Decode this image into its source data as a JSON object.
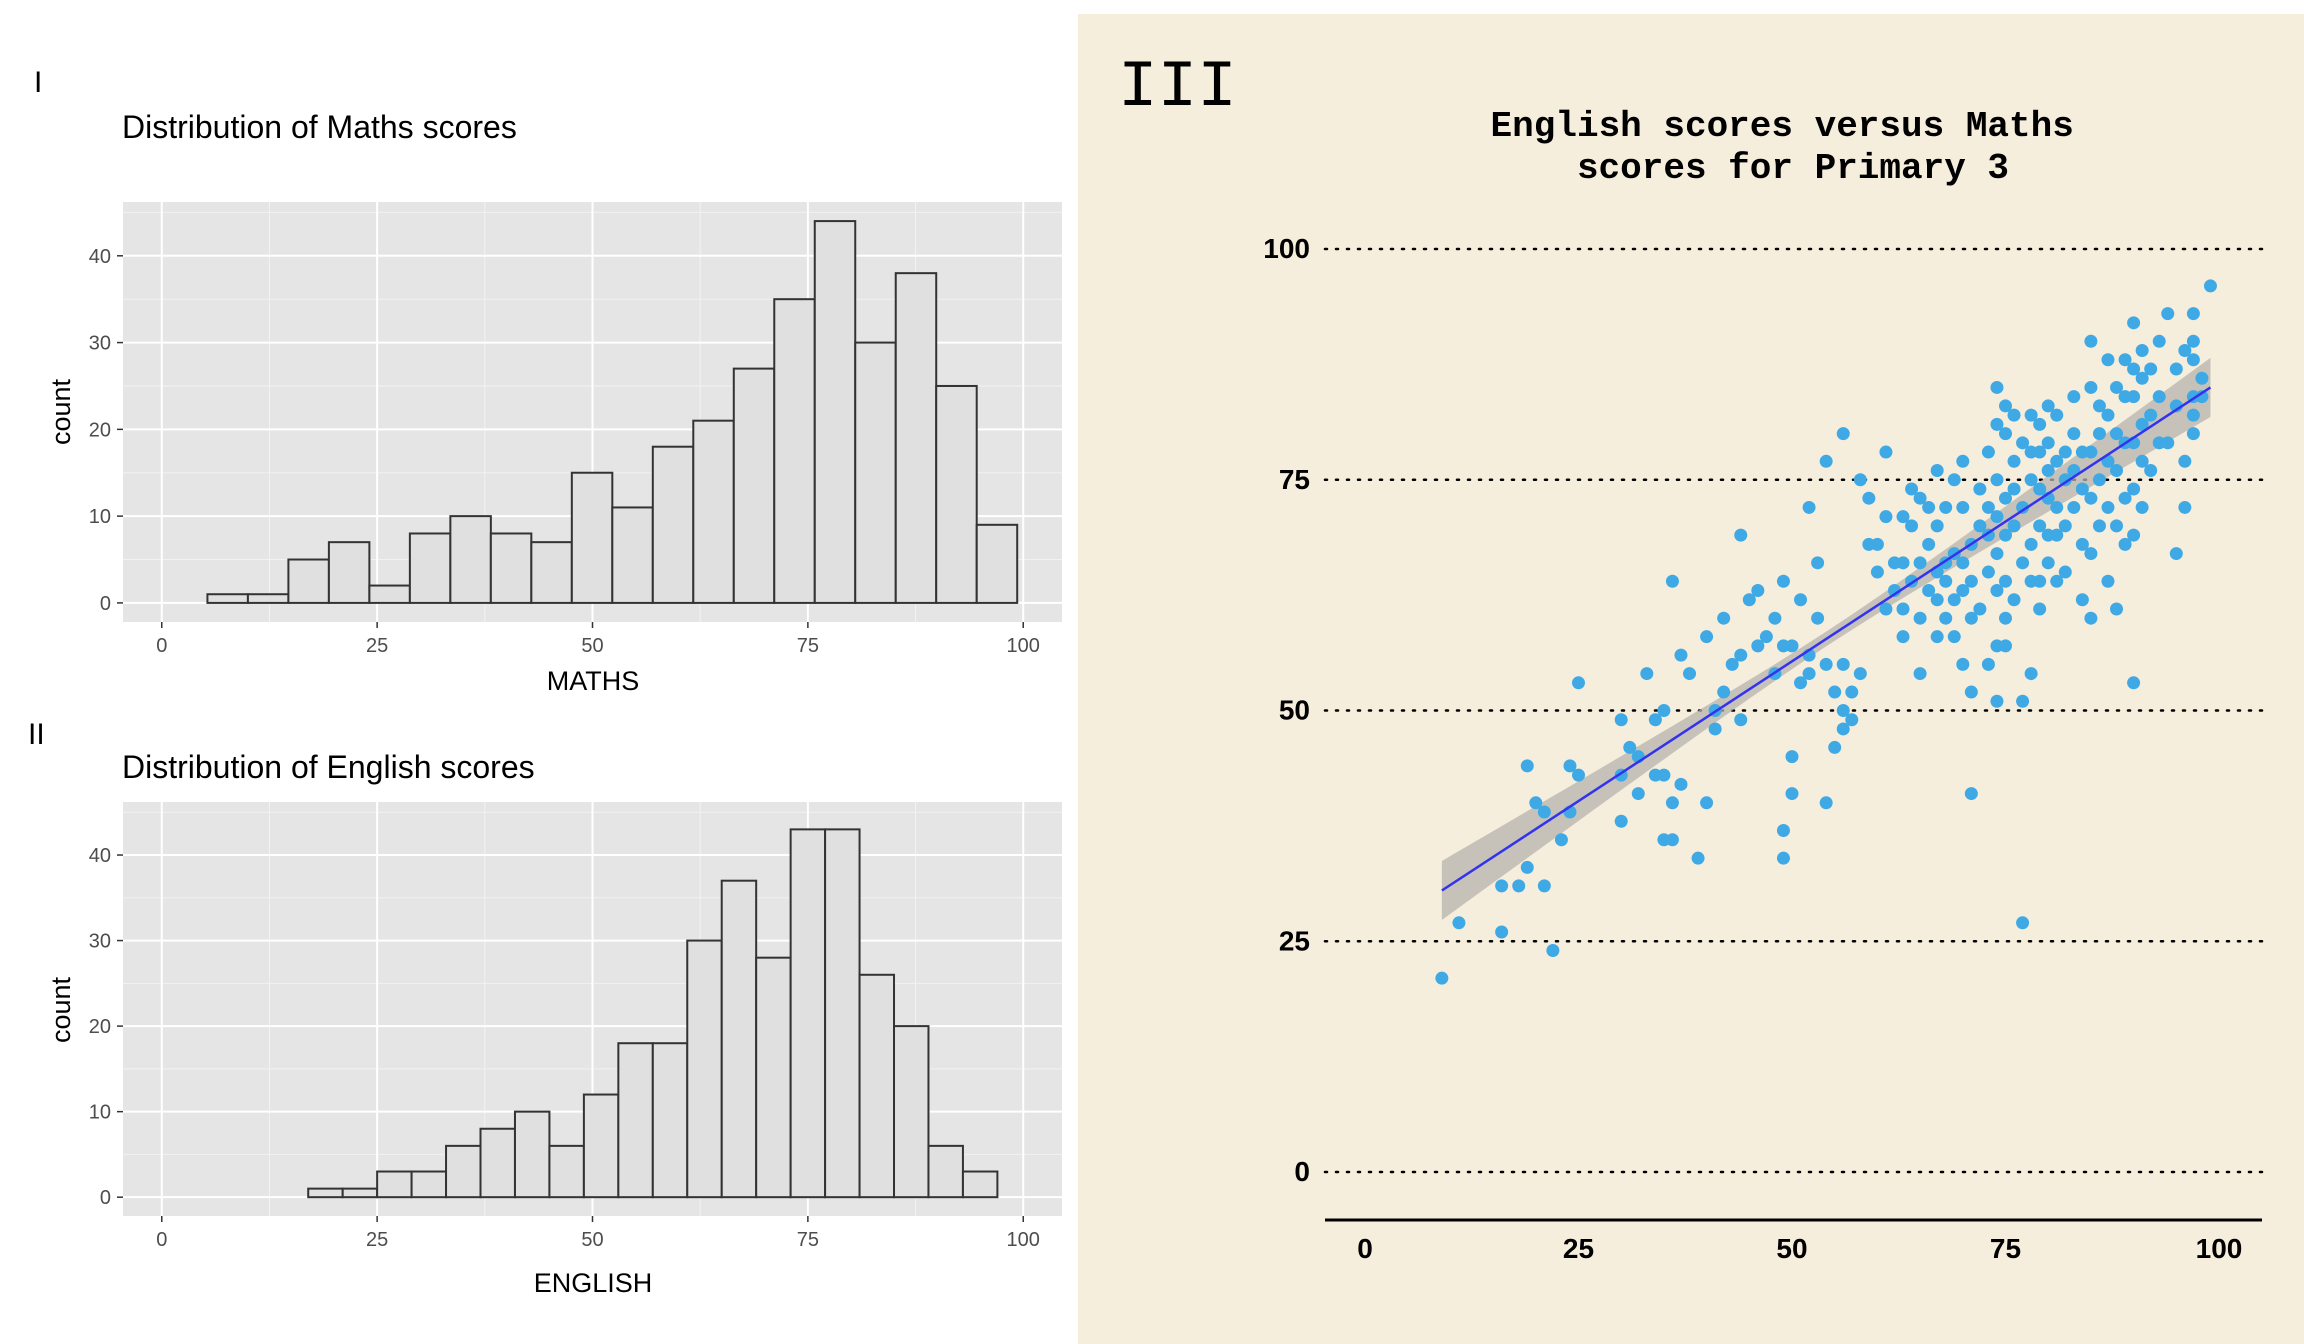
{
  "panels": {
    "p1_tag": "I",
    "p2_tag": "II",
    "p3_tag": "III"
  },
  "chart_data": [
    {
      "type": "bar",
      "title": "Distribution of Maths scores",
      "xlabel": "MATHS",
      "ylabel": "count",
      "xlim": [
        -4.5,
        104.5
      ],
      "ylim": [
        -2.2,
        46.2
      ],
      "x_ticks": [
        0,
        25,
        50,
        75,
        100
      ],
      "y_ticks": [
        0,
        10,
        20,
        30,
        40
      ],
      "bin_width": 4.7,
      "bins": [
        {
          "x0": 5.3,
          "x1": 10.0,
          "count": 1
        },
        {
          "x0": 10.0,
          "x1": 14.7,
          "count": 1
        },
        {
          "x0": 14.7,
          "x1": 19.4,
          "count": 5
        },
        {
          "x0": 19.4,
          "x1": 24.1,
          "count": 7
        },
        {
          "x0": 24.1,
          "x1": 28.8,
          "count": 2
        },
        {
          "x0": 28.8,
          "x1": 33.5,
          "count": 8
        },
        {
          "x0": 33.5,
          "x1": 38.2,
          "count": 10
        },
        {
          "x0": 38.2,
          "x1": 42.9,
          "count": 8
        },
        {
          "x0": 42.9,
          "x1": 47.6,
          "count": 7
        },
        {
          "x0": 47.6,
          "x1": 52.3,
          "count": 15
        },
        {
          "x0": 52.3,
          "x1": 57.0,
          "count": 11
        },
        {
          "x0": 57.0,
          "x1": 61.7,
          "count": 18
        },
        {
          "x0": 61.7,
          "x1": 66.4,
          "count": 21
        },
        {
          "x0": 66.4,
          "x1": 71.1,
          "count": 27
        },
        {
          "x0": 71.1,
          "x1": 75.8,
          "count": 35
        },
        {
          "x0": 75.8,
          "x1": 80.5,
          "count": 44
        },
        {
          "x0": 80.5,
          "x1": 85.2,
          "count": 30
        },
        {
          "x0": 85.2,
          "x1": 89.9,
          "count": 38
        },
        {
          "x0": 89.9,
          "x1": 94.6,
          "count": 25
        },
        {
          "x0": 94.6,
          "x1": 99.3,
          "count": 9
        }
      ],
      "colors": {
        "fill": "#e0e0e0",
        "stroke": "#333333",
        "panel": "#e5e5e5",
        "grid": "#ffffff"
      }
    },
    {
      "type": "bar",
      "title": "Distribution of English scores",
      "xlabel": "ENGLISH",
      "ylabel": "count",
      "xlim": [
        -4.5,
        104.5
      ],
      "ylim": [
        -2.2,
        46.2
      ],
      "x_ticks": [
        0,
        25,
        50,
        75,
        100
      ],
      "y_ticks": [
        0,
        10,
        20,
        30,
        40
      ],
      "bin_width": 4.0,
      "bins": [
        {
          "x0": 17,
          "x1": 21,
          "count": 1
        },
        {
          "x0": 21,
          "x1": 25,
          "count": 1
        },
        {
          "x0": 25,
          "x1": 29,
          "count": 3
        },
        {
          "x0": 29,
          "x1": 33,
          "count": 3
        },
        {
          "x0": 33,
          "x1": 37,
          "count": 6
        },
        {
          "x0": 37,
          "x1": 41,
          "count": 8
        },
        {
          "x0": 41,
          "x1": 45,
          "count": 10
        },
        {
          "x0": 45,
          "x1": 49,
          "count": 6
        },
        {
          "x0": 49,
          "x1": 53,
          "count": 12
        },
        {
          "x0": 53,
          "x1": 57,
          "count": 18
        },
        {
          "x0": 57,
          "x1": 61,
          "count": 18
        },
        {
          "x0": 61,
          "x1": 65,
          "count": 30
        },
        {
          "x0": 65,
          "x1": 69,
          "count": 37
        },
        {
          "x0": 69,
          "x1": 73,
          "count": 28
        },
        {
          "x0": 73,
          "x1": 77,
          "count": 43
        },
        {
          "x0": 77,
          "x1": 81,
          "count": 43
        },
        {
          "x0": 81,
          "x1": 85,
          "count": 26
        },
        {
          "x0": 85,
          "x1": 89,
          "count": 20
        },
        {
          "x0": 89,
          "x1": 93,
          "count": 6
        },
        {
          "x0": 93,
          "x1": 97,
          "count": 3
        }
      ],
      "colors": {
        "fill": "#e0e0e0",
        "stroke": "#333333",
        "panel": "#e5e5e5",
        "grid": "#ffffff"
      }
    },
    {
      "type": "scatter",
      "title": "English scores versus Maths scores for Primary 3",
      "xlabel": "",
      "ylabel": "",
      "xlim": [
        -5,
        105
      ],
      "ylim": [
        -5,
        100
      ],
      "x_ticks": [
        0,
        25,
        50,
        75,
        100
      ],
      "y_ticks": [
        0,
        25,
        50,
        75,
        100
      ],
      "grid": "horizontal-dotted",
      "fit": {
        "method": "linear",
        "x0": 9,
        "y0": 30.5,
        "x1": 99,
        "y1": 85.0,
        "se_halfwidth_ends": 3.2,
        "se_halfwidth_mid": 0.8
      },
      "points": [
        [
          9,
          21
        ],
        [
          11,
          27
        ],
        [
          16,
          26
        ],
        [
          16,
          31
        ],
        [
          18,
          31
        ],
        [
          19,
          33
        ],
        [
          19,
          44
        ],
        [
          20,
          40
        ],
        [
          21,
          31
        ],
        [
          21,
          39
        ],
        [
          22,
          24
        ],
        [
          23,
          36
        ],
        [
          24,
          39
        ],
        [
          24,
          44
        ],
        [
          25,
          43
        ],
        [
          25,
          53
        ],
        [
          30,
          38
        ],
        [
          30,
          43
        ],
        [
          30,
          49
        ],
        [
          31,
          46
        ],
        [
          32,
          41
        ],
        [
          32,
          45
        ],
        [
          33,
          54
        ],
        [
          34,
          43
        ],
        [
          34,
          49
        ],
        [
          35,
          36
        ],
        [
          35,
          43
        ],
        [
          35,
          50
        ],
        [
          36,
          36
        ],
        [
          36,
          40
        ],
        [
          36,
          64
        ],
        [
          37,
          42
        ],
        [
          37,
          56
        ],
        [
          38,
          54
        ],
        [
          39,
          34
        ],
        [
          40,
          40
        ],
        [
          40,
          58
        ],
        [
          41,
          48
        ],
        [
          41,
          50
        ],
        [
          42,
          52
        ],
        [
          42,
          60
        ],
        [
          43,
          55
        ],
        [
          44,
          49
        ],
        [
          44,
          69
        ],
        [
          44,
          56
        ],
        [
          45,
          62
        ],
        [
          46,
          57
        ],
        [
          46,
          63
        ],
        [
          47,
          58
        ],
        [
          48,
          54
        ],
        [
          48,
          60
        ],
        [
          49,
          34
        ],
        [
          49,
          37
        ],
        [
          49,
          57
        ],
        [
          49,
          64
        ],
        [
          50,
          41
        ],
        [
          50,
          45
        ],
        [
          50,
          57
        ],
        [
          51,
          53
        ],
        [
          51,
          62
        ],
        [
          52,
          72
        ],
        [
          52,
          54
        ],
        [
          52,
          56
        ],
        [
          53,
          60
        ],
        [
          53,
          66
        ],
        [
          54,
          40
        ],
        [
          54,
          55
        ],
        [
          54,
          77
        ],
        [
          55,
          46
        ],
        [
          55,
          52
        ],
        [
          56,
          48
        ],
        [
          56,
          50
        ],
        [
          56,
          55
        ],
        [
          56,
          80
        ],
        [
          57,
          49
        ],
        [
          57,
          52
        ],
        [
          58,
          54
        ],
        [
          58,
          75
        ],
        [
          59,
          73
        ],
        [
          59,
          68
        ],
        [
          60,
          65
        ],
        [
          60,
          68
        ],
        [
          61,
          61
        ],
        [
          61,
          71
        ],
        [
          61,
          78
        ],
        [
          62,
          63
        ],
        [
          62,
          66
        ],
        [
          63,
          58
        ],
        [
          63,
          61
        ],
        [
          63,
          66
        ],
        [
          63,
          71
        ],
        [
          64,
          64
        ],
        [
          64,
          70
        ],
        [
          64,
          74
        ],
        [
          65,
          54
        ],
        [
          65,
          60
        ],
        [
          65,
          66
        ],
        [
          65,
          73
        ],
        [
          66,
          63
        ],
        [
          66,
          68
        ],
        [
          66,
          72
        ],
        [
          67,
          58
        ],
        [
          67,
          62
        ],
        [
          67,
          65
        ],
        [
          67,
          70
        ],
        [
          67,
          76
        ],
        [
          68,
          60
        ],
        [
          68,
          64
        ],
        [
          68,
          66
        ],
        [
          68,
          72
        ],
        [
          69,
          58
        ],
        [
          69,
          62
        ],
        [
          69,
          67
        ],
        [
          69,
          75
        ],
        [
          70,
          55
        ],
        [
          70,
          63
        ],
        [
          70,
          66
        ],
        [
          70,
          72
        ],
        [
          70,
          77
        ],
        [
          71,
          41
        ],
        [
          71,
          52
        ],
        [
          71,
          60
        ],
        [
          71,
          64
        ],
        [
          71,
          68
        ],
        [
          72,
          61
        ],
        [
          72,
          70
        ],
        [
          72,
          74
        ],
        [
          73,
          55
        ],
        [
          73,
          65
        ],
        [
          73,
          69
        ],
        [
          73,
          72
        ],
        [
          73,
          78
        ],
        [
          74,
          51
        ],
        [
          74,
          57
        ],
        [
          74,
          63
        ],
        [
          74,
          67
        ],
        [
          74,
          71
        ],
        [
          74,
          75
        ],
        [
          74,
          81
        ],
        [
          74,
          85
        ],
        [
          75,
          57
        ],
        [
          75,
          60
        ],
        [
          75,
          64
        ],
        [
          75,
          69
        ],
        [
          75,
          73
        ],
        [
          75,
          80
        ],
        [
          75,
          83
        ],
        [
          76,
          62
        ],
        [
          76,
          70
        ],
        [
          76,
          74
        ],
        [
          76,
          77
        ],
        [
          76,
          82
        ],
        [
          77,
          27
        ],
        [
          77,
          51
        ],
        [
          77,
          66
        ],
        [
          77,
          72
        ],
        [
          77,
          79
        ],
        [
          78,
          54
        ],
        [
          78,
          64
        ],
        [
          78,
          68
        ],
        [
          78,
          75
        ],
        [
          78,
          78
        ],
        [
          78,
          82
        ],
        [
          79,
          61
        ],
        [
          79,
          64
        ],
        [
          79,
          70
        ],
        [
          79,
          74
        ],
        [
          79,
          78
        ],
        [
          79,
          81
        ],
        [
          80,
          66
        ],
        [
          80,
          69
        ],
        [
          80,
          73
        ],
        [
          80,
          76
        ],
        [
          80,
          79
        ],
        [
          80,
          83
        ],
        [
          81,
          64
        ],
        [
          81,
          69
        ],
        [
          81,
          72
        ],
        [
          81,
          77
        ],
        [
          81,
          82
        ],
        [
          82,
          65
        ],
        [
          82,
          70
        ],
        [
          82,
          75
        ],
        [
          82,
          78
        ],
        [
          83,
          72
        ],
        [
          83,
          76
        ],
        [
          83,
          80
        ],
        [
          83,
          84
        ],
        [
          84,
          62
        ],
        [
          84,
          68
        ],
        [
          84,
          74
        ],
        [
          84,
          78
        ],
        [
          85,
          60
        ],
        [
          85,
          67
        ],
        [
          85,
          73
        ],
        [
          85,
          78
        ],
        [
          85,
          85
        ],
        [
          85,
          90
        ],
        [
          86,
          70
        ],
        [
          86,
          75
        ],
        [
          86,
          80
        ],
        [
          86,
          83
        ],
        [
          87,
          64
        ],
        [
          87,
          72
        ],
        [
          87,
          77
        ],
        [
          87,
          82
        ],
        [
          87,
          88
        ],
        [
          88,
          61
        ],
        [
          88,
          70
        ],
        [
          88,
          76
        ],
        [
          88,
          80
        ],
        [
          88,
          85
        ],
        [
          89,
          68
        ],
        [
          89,
          73
        ],
        [
          89,
          79
        ],
        [
          89,
          84
        ],
        [
          89,
          88
        ],
        [
          90,
          53
        ],
        [
          90,
          69
        ],
        [
          90,
          74
        ],
        [
          90,
          79
        ],
        [
          90,
          84
        ],
        [
          90,
          87
        ],
        [
          90,
          92
        ],
        [
          91,
          72
        ],
        [
          91,
          77
        ],
        [
          91,
          81
        ],
        [
          91,
          86
        ],
        [
          91,
          89
        ],
        [
          92,
          76
        ],
        [
          92,
          82
        ],
        [
          92,
          87
        ],
        [
          93,
          79
        ],
        [
          93,
          84
        ],
        [
          93,
          90
        ],
        [
          94,
          93
        ],
        [
          94,
          79
        ],
        [
          95,
          67
        ],
        [
          95,
          83
        ],
        [
          95,
          87
        ],
        [
          96,
          77
        ],
        [
          96,
          72
        ],
        [
          96,
          89
        ],
        [
          97,
          80
        ],
        [
          97,
          82
        ],
        [
          97,
          84
        ],
        [
          97,
          88
        ],
        [
          97,
          90
        ],
        [
          97,
          93
        ],
        [
          98,
          84
        ],
        [
          98,
          86
        ],
        [
          99,
          96
        ]
      ],
      "colors": {
        "point": "#3fa9e6",
        "line": "#3333ee",
        "band": "#b5b3ad",
        "background": "#f5eedd"
      }
    }
  ]
}
